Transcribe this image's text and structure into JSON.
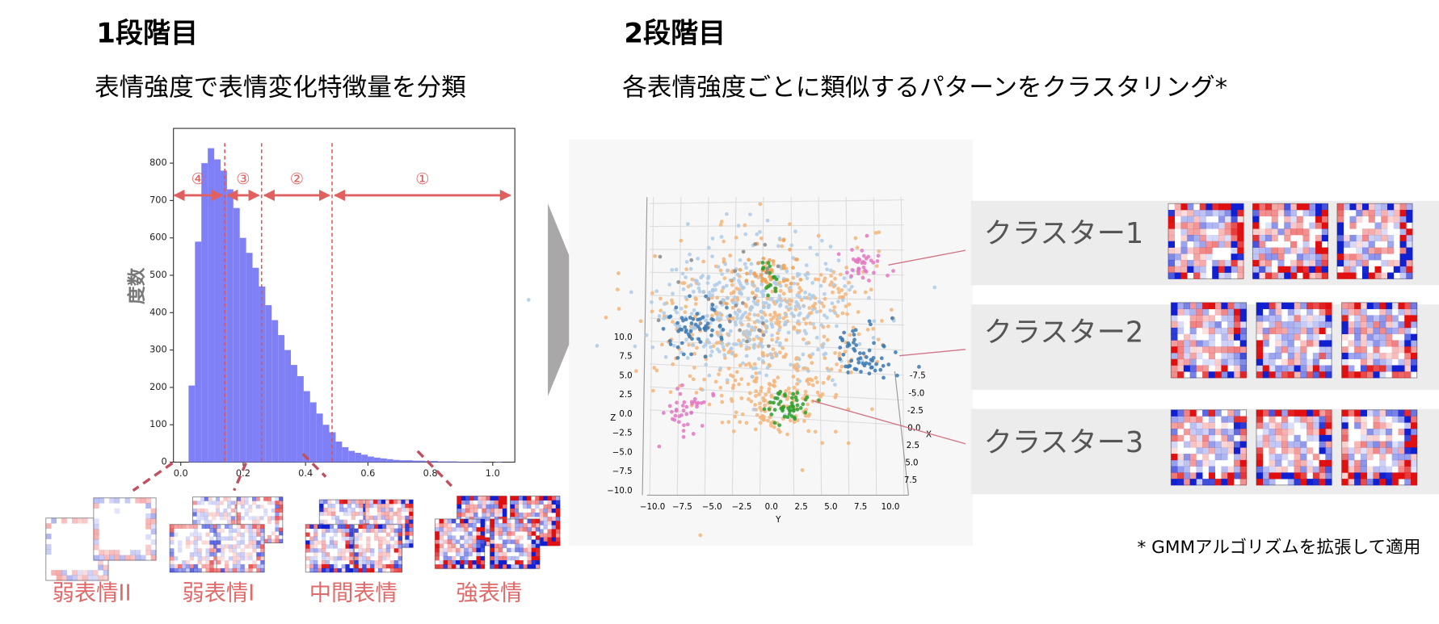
{
  "stage1": {
    "title": "1段階目",
    "subtitle": "表情強度で表情変化特徴量を分類",
    "levels": [
      "弱表情II",
      "弱表情I",
      "中間表情",
      "強表情"
    ]
  },
  "stage2": {
    "title": "2段階目",
    "subtitle": "各表情強度ごとに類似するパターンをクラスタリング*",
    "clusters": [
      "クラスター1",
      "クラスター2",
      "クラスター3"
    ],
    "footnote": "* GMMアルゴリズムを拡張して適用",
    "plot3d": {
      "xlabel": "X",
      "ylabel": "Y",
      "zlabel": "Z",
      "xticks": [
        {
          "value": -7.5,
          "label": "-7.5"
        },
        {
          "value": -5,
          "label": "-5.0"
        },
        {
          "value": -2.5,
          "label": "-2.5"
        },
        {
          "value": 0,
          "label": "0.0"
        },
        {
          "value": 2.5,
          "label": "2.5"
        },
        {
          "value": 5,
          "label": "5.0"
        },
        {
          "value": 7.5,
          "label": "7.5"
        }
      ],
      "yticks": [
        {
          "value": -10,
          "label": "−10.0"
        },
        {
          "value": -7.5,
          "label": "−7.5"
        },
        {
          "value": -5,
          "label": "−5.0"
        },
        {
          "value": -2.5,
          "label": "−2.5"
        },
        {
          "value": 0,
          "label": "0.0"
        },
        {
          "value": 2.5,
          "label": "2.5"
        },
        {
          "value": 5,
          "label": "5.0"
        },
        {
          "value": 7.5,
          "label": "7.5"
        },
        {
          "value": 10,
          "label": "10.0"
        }
      ],
      "zticks": [
        {
          "value": 10,
          "label": "10.0"
        },
        {
          "value": 7.5,
          "label": "7.5"
        },
        {
          "value": 5,
          "label": "5.0"
        },
        {
          "value": 2.5,
          "label": "2.5"
        },
        {
          "value": 0,
          "label": "0.0"
        },
        {
          "value": -2.5,
          "label": "−2.5"
        },
        {
          "value": -5,
          "label": "−5.0"
        },
        {
          "value": -7.5,
          "label": "−7.5"
        },
        {
          "value": -10,
          "label": "−10.0"
        }
      ]
    }
  },
  "chart_data": {
    "type": "histogram",
    "ylabel": "度数",
    "color": "#8080f6",
    "bins": [
      0.025,
      0.0455,
      0.066,
      0.0865,
      0.107,
      0.1275,
      0.148,
      0.1685,
      0.189,
      0.2095,
      0.23,
      0.2505,
      0.271,
      0.2915,
      0.312,
      0.3325,
      0.353,
      0.3735,
      0.394,
      0.4145,
      0.435,
      0.4555,
      0.476,
      0.4965,
      0.517,
      0.5375,
      0.558,
      0.5785,
      0.599,
      0.6195,
      0.64,
      0.6605,
      0.681,
      0.7015,
      0.722,
      0.7425,
      0.763,
      0.7835,
      0.804,
      0.8245,
      0.845,
      0.8655,
      0.886,
      0.9065,
      0.927,
      0.9475,
      0.968,
      0.9885,
      1.009,
      1.0295,
      1.05
    ],
    "values": [
      205,
      590,
      800,
      840,
      810,
      780,
      730,
      680,
      600,
      560,
      520,
      470,
      420,
      380,
      340,
      300,
      260,
      230,
      190,
      160,
      130,
      100,
      80,
      55,
      40,
      30,
      25,
      20,
      15,
      12,
      10,
      8,
      6,
      5,
      5,
      4,
      4,
      3,
      3,
      2,
      2,
      2,
      1,
      1,
      1,
      1,
      0,
      0,
      1,
      0
    ],
    "xlim": [
      -0.0235,
      1.071
    ],
    "ylim": [
      0,
      893
    ],
    "xticks": [
      {
        "value": 0,
        "label": "0.0"
      },
      {
        "value": 0.2,
        "label": "0.2"
      },
      {
        "value": 0.4,
        "label": "0.4"
      },
      {
        "value": 0.6,
        "label": "0.6"
      },
      {
        "value": 0.8,
        "label": "0.8"
      },
      {
        "value": 1,
        "label": "1.0"
      }
    ],
    "yticks": [
      0,
      100,
      200,
      300,
      400,
      500,
      600,
      700,
      800
    ],
    "thresholds": [
      0.141,
      0.259,
      0.485
    ],
    "annotations": [
      "④",
      "③",
      "②",
      "①"
    ]
  }
}
